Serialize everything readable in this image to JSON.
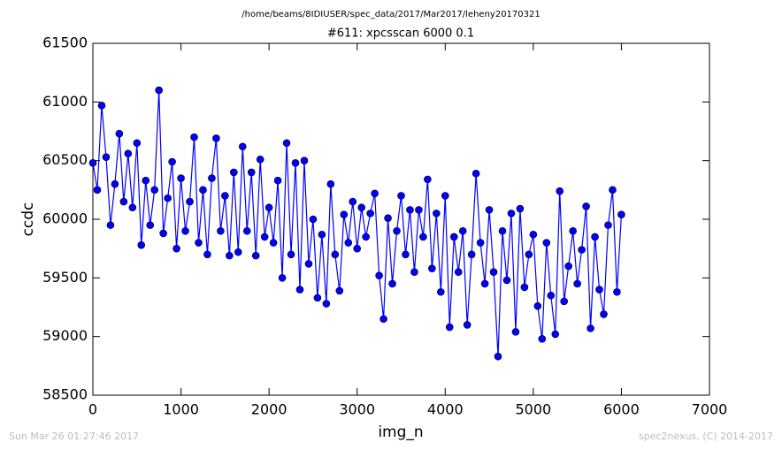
{
  "chart_data": {
    "type": "line",
    "suptitle": "/home/beams/8IDIUSER/spec_data/2017/Mar2017/leheny20170321",
    "title": "#611: xpcsscan 6000 0.1",
    "x_label": "img_n",
    "y_label": "ccdc",
    "footer_left": "Sun Mar 26 01:27:46 2017",
    "footer_right": "spec2nexus, (C) 2014-2017",
    "color": "#0000ff",
    "x": [
      0,
      50,
      100,
      150,
      200,
      250,
      300,
      350,
      400,
      450,
      500,
      550,
      600,
      650,
      700,
      750,
      800,
      850,
      900,
      950,
      1000,
      1050,
      1100,
      1150,
      1200,
      1250,
      1300,
      1350,
      1400,
      1450,
      1500,
      1550,
      1600,
      1650,
      1700,
      1750,
      1800,
      1850,
      1900,
      1950,
      2000,
      2050,
      2100,
      2150,
      2200,
      2250,
      2300,
      2350,
      2400,
      2450,
      2500,
      2550,
      2600,
      2650,
      2700,
      2750,
      2800,
      2850,
      2900,
      2950,
      3000,
      3050,
      3100,
      3150,
      3200,
      3250,
      3300,
      3350,
      3400,
      3450,
      3500,
      3550,
      3600,
      3650,
      3700,
      3750,
      3800,
      3850,
      3900,
      3950,
      4000,
      4050,
      4100,
      4150,
      4200,
      4250,
      4300,
      4350,
      4400,
      4450,
      4500,
      4550,
      4600,
      4650,
      4700,
      4750,
      4800,
      4850,
      4900,
      4950,
      5000,
      5050,
      5100,
      5150,
      5200,
      5250,
      5300,
      5350,
      5400,
      5450,
      5500,
      5550,
      5600,
      5650,
      5700,
      5750,
      5800,
      5850,
      5900,
      5950,
      6000
    ],
    "values": [
      60480,
      60250,
      60970,
      60530,
      59950,
      60300,
      60730,
      60150,
      60560,
      60100,
      60650,
      59780,
      60330,
      59950,
      60250,
      61100,
      59880,
      60180,
      60490,
      59750,
      60350,
      59900,
      60150,
      60700,
      59800,
      60250,
      59700,
      60350,
      60690,
      59900,
      60200,
      59690,
      60400,
      59720,
      60620,
      59900,
      60400,
      59690,
      60510,
      59850,
      60100,
      59800,
      60330,
      59500,
      60650,
      59700,
      60480,
      59400,
      60500,
      59620,
      60000,
      59330,
      59870,
      59280,
      60300,
      59700,
      59390,
      60040,
      59800,
      60150,
      59750,
      60100,
      59850,
      60050,
      60220,
      59520,
      59150,
      60010,
      59450,
      59900,
      60200,
      59700,
      60080,
      59550,
      60080,
      59850,
      60340,
      59580,
      60050,
      59380,
      60200,
      59080,
      59850,
      59550,
      59900,
      59100,
      59700,
      60390,
      59800,
      59450,
      60080,
      59550,
      58830,
      59900,
      59480,
      60050,
      59040,
      60090,
      59420,
      59700,
      59870,
      59260,
      58980,
      59800,
      59350,
      59020,
      60240,
      59300,
      59600,
      59900,
      59450,
      59740,
      60110,
      59070,
      59850,
      59400,
      59190,
      59950,
      60250,
      59380,
      60040
    ],
    "xlim": [
      0,
      7000
    ],
    "xticks": [
      0,
      1000,
      2000,
      3000,
      4000,
      5000,
      6000,
      7000
    ],
    "ylim": [
      58500,
      61500
    ],
    "yticks": [
      58500,
      59000,
      59500,
      60000,
      60500,
      61000,
      61500
    ]
  }
}
